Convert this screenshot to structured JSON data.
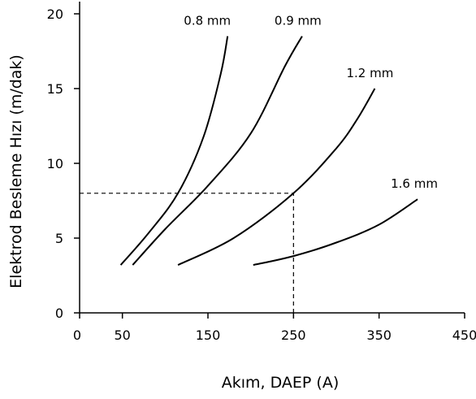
{
  "chart_data": {
    "type": "line",
    "xlabel": "Akım, DAEP (A)",
    "ylabel": "Elektrod Besleme Hızı (m/dak)",
    "xlim": [
      0,
      450
    ],
    "ylim": [
      0,
      20
    ],
    "xticks": [
      0,
      50,
      150,
      250,
      350,
      450
    ],
    "yticks": [
      0,
      5,
      10,
      15,
      20
    ],
    "grid": false,
    "colors": {
      "axis": "#000000",
      "line": "#000000",
      "guide": "#000000"
    },
    "series": [
      {
        "name": "0.8 mm",
        "points": [
          [
            48,
            3.2
          ],
          [
            80,
            5.3
          ],
          [
            115,
            8.0
          ],
          [
            145,
            11.8
          ],
          [
            165,
            16.0
          ],
          [
            173,
            18.5
          ]
        ]
      },
      {
        "name": "0.9 mm",
        "points": [
          [
            62,
            3.2
          ],
          [
            100,
            5.6
          ],
          [
            150,
            8.5
          ],
          [
            200,
            12.0
          ],
          [
            240,
            16.5
          ],
          [
            260,
            18.5
          ]
        ]
      },
      {
        "name": "1.2 mm",
        "points": [
          [
            115,
            3.2
          ],
          [
            180,
            5.0
          ],
          [
            250,
            8.0
          ],
          [
            300,
            11.0
          ],
          [
            325,
            13.0
          ],
          [
            345,
            15.0
          ]
        ]
      },
      {
        "name": "1.6 mm",
        "points": [
          [
            203,
            3.2
          ],
          [
            250,
            3.8
          ],
          [
            300,
            4.7
          ],
          [
            350,
            5.9
          ],
          [
            395,
            7.6
          ]
        ]
      }
    ],
    "reference_lines": [
      {
        "type": "horizontal",
        "y": 8,
        "x_from": 0,
        "x_to": 250
      },
      {
        "type": "vertical",
        "x": 250,
        "y_from": 0,
        "y_to": 8
      }
    ]
  }
}
